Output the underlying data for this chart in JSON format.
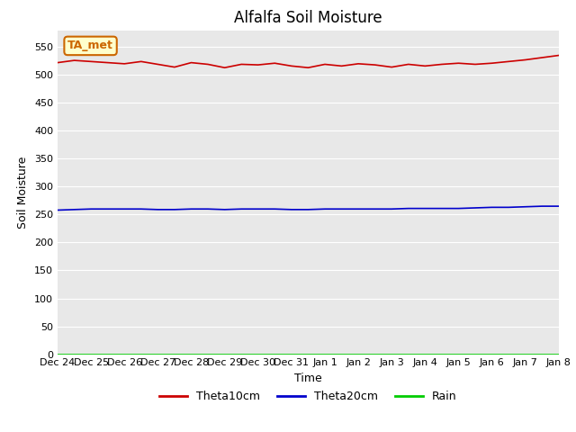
{
  "title": "Alfalfa Soil Moisture",
  "xlabel": "Time",
  "ylabel": "Soil Moisture",
  "background_color": "#e8e8e8",
  "fig_background": "#ffffff",
  "ylim": [
    0,
    580
  ],
  "yticks": [
    0,
    50,
    100,
    150,
    200,
    250,
    300,
    350,
    400,
    450,
    500,
    550
  ],
  "x_labels": [
    "Dec 24",
    "Dec 25",
    "Dec 26",
    "Dec 27",
    "Dec 28",
    "Dec 29",
    "Dec 30",
    "Dec 31",
    "Jan 1",
    "Jan 2",
    "Jan 3",
    "Jan 4",
    "Jan 5",
    "Jan 6",
    "Jan 7",
    "Jan 8"
  ],
  "theta10cm": [
    522,
    526,
    524,
    522,
    520,
    524,
    519,
    514,
    522,
    519,
    513,
    519,
    518,
    521,
    516,
    513,
    519,
    516,
    520,
    518,
    514,
    519,
    516,
    519,
    521,
    519,
    521,
    524,
    527,
    531,
    535
  ],
  "theta20cm": [
    258,
    259,
    260,
    260,
    260,
    260,
    259,
    259,
    260,
    260,
    259,
    260,
    260,
    260,
    259,
    259,
    260,
    260,
    260,
    260,
    260,
    261,
    261,
    261,
    261,
    262,
    263,
    263,
    264,
    265,
    265
  ],
  "rain": [
    0,
    0,
    0,
    0,
    0,
    0,
    0,
    0,
    0,
    0,
    0,
    0,
    0,
    0,
    0,
    0,
    0,
    0,
    0,
    0,
    0,
    0,
    0,
    0,
    0,
    0,
    0,
    0,
    0,
    0,
    0
  ],
  "theta10_color": "#cc0000",
  "theta20_color": "#0000cc",
  "rain_color": "#00cc00",
  "annotation_text": "TA_met",
  "annotation_bg": "#ffffcc",
  "annotation_border": "#cc6600",
  "grid_color": "#ffffff",
  "title_fontsize": 12,
  "axis_fontsize": 9,
  "tick_fontsize": 8,
  "legend_fontsize": 9,
  "linewidth": 1.2
}
